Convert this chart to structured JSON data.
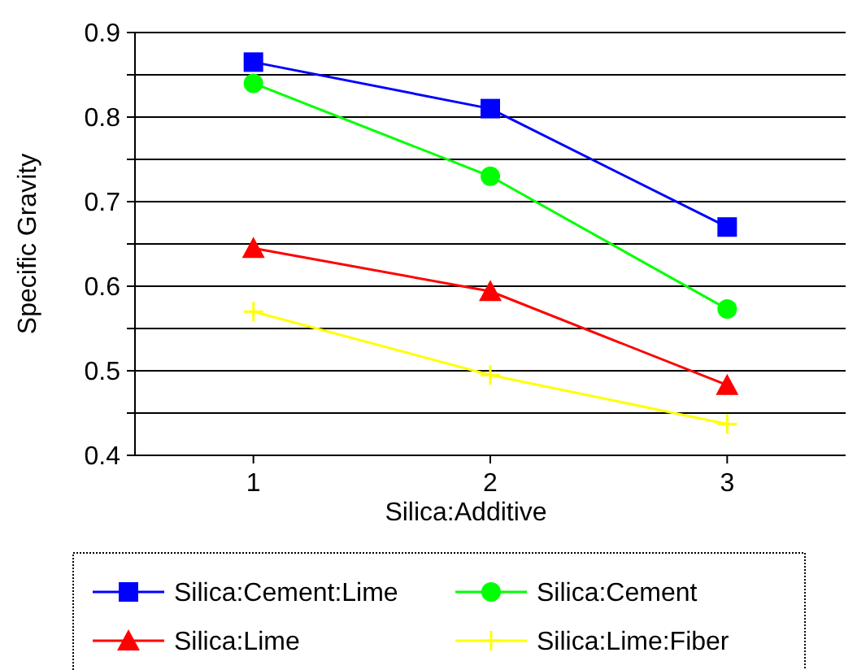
{
  "chart_data": {
    "type": "line",
    "xlabel": "Silica:Additive",
    "ylabel": "Specific Gravity",
    "categories": [
      "1",
      "2",
      "3"
    ],
    "ylim": [
      0.4,
      0.9
    ],
    "yticks": [
      0.4,
      {
        "value": 0.45,
        "label": null
      },
      0.5,
      {
        "value": 0.55,
        "label": null
      },
      0.6,
      {
        "value": 0.65,
        "label": null
      },
      0.7,
      {
        "value": 0.75,
        "label": null
      },
      0.8,
      {
        "value": 0.85,
        "label": null
      },
      0.9
    ],
    "grid": "y",
    "legend": "bottom",
    "series": [
      {
        "name": "Silica:Cement:Lime",
        "color": "#0000ff",
        "marker": "square",
        "values": [
          0.865,
          0.81,
          0.67
        ]
      },
      {
        "name": "Silica:Cement",
        "color": "#00ff00",
        "marker": "circle",
        "values": [
          0.84,
          0.73,
          0.573
        ]
      },
      {
        "name": "Silica:Lime",
        "color": "#ff0000",
        "marker": "triangle",
        "values": [
          0.645,
          0.594,
          0.483
        ]
      },
      {
        "name": "Silica:Lime:Fiber",
        "color": "#ffff00",
        "marker": "cross",
        "values": [
          0.57,
          0.495,
          0.437
        ]
      }
    ]
  }
}
